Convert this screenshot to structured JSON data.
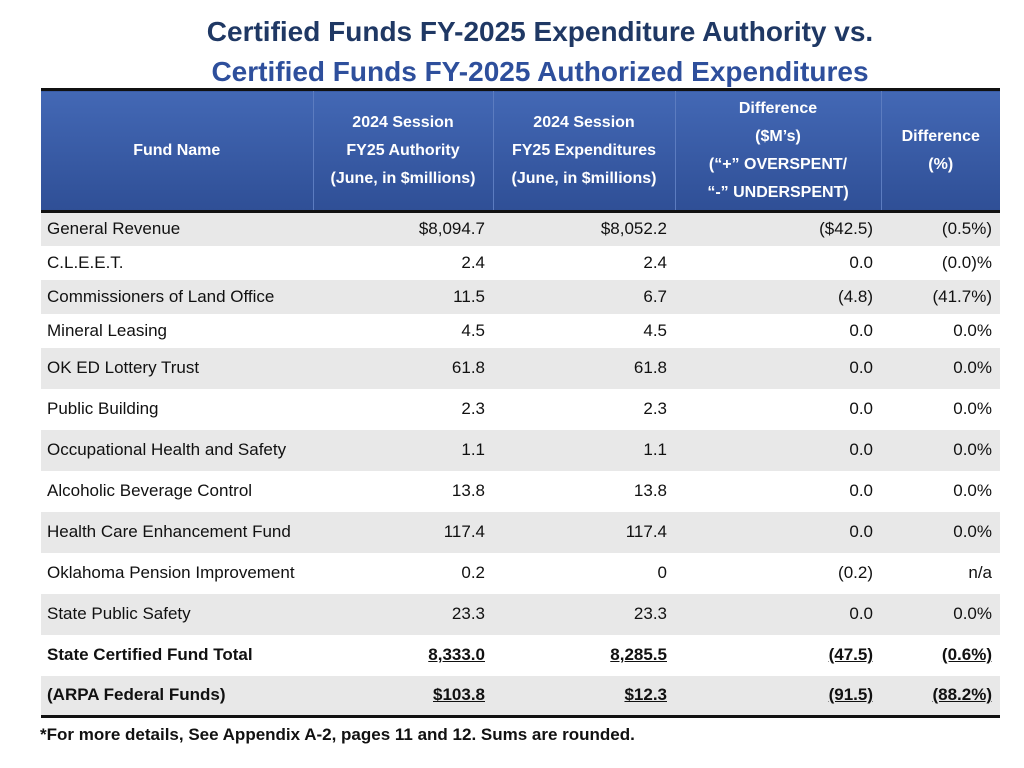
{
  "title": {
    "line1": "Certified Funds FY-2025 Expenditure Authority vs.",
    "line2": "Certified Funds FY-2025 Authorized Expenditures"
  },
  "table": {
    "headers": {
      "fund_name": [
        "Fund Name"
      ],
      "authority": [
        "2024 Session",
        "FY25 Authority",
        "(June, in $millions)"
      ],
      "expenditures": [
        "2024 Session",
        "FY25 Expenditures",
        "(June, in $millions)"
      ],
      "difference": [
        "Difference",
        "($M’s)",
        "(“+” OVERSPENT/",
        "“-” UNDERSPENT)"
      ],
      "difference_pct": [
        "Difference",
        "(%)"
      ]
    },
    "rows": [
      {
        "name": "General Revenue",
        "authority": "$8,094.7",
        "expenditures": "$8,052.2",
        "difference": "($42.5)",
        "pct": "(0.5%)"
      },
      {
        "name": "C.L.E.E.T.",
        "authority": "2.4",
        "expenditures": "2.4",
        "difference": "0.0",
        "pct": "(0.0)%"
      },
      {
        "name": "Commissioners of Land Office",
        "authority": "11.5",
        "expenditures": "6.7",
        "difference": "(4.8)",
        "pct": "(41.7%)"
      },
      {
        "name": "Mineral Leasing",
        "authority": "4.5",
        "expenditures": "4.5",
        "difference": "0.0",
        "pct": "0.0%"
      },
      {
        "name": "OK ED Lottery Trust",
        "authority": "61.8",
        "expenditures": "61.8",
        "difference": "0.0",
        "pct": "0.0%"
      },
      {
        "name": "Public Building",
        "authority": "2.3",
        "expenditures": "2.3",
        "difference": "0.0",
        "pct": "0.0%"
      },
      {
        "name": "Occupational Health and Safety",
        "authority": "1.1",
        "expenditures": "1.1",
        "difference": "0.0",
        "pct": "0.0%"
      },
      {
        "name": "Alcoholic Beverage Control",
        "authority": "13.8",
        "expenditures": "13.8",
        "difference": "0.0",
        "pct": "0.0%"
      },
      {
        "name": "Health Care Enhancement Fund",
        "authority": "117.4",
        "expenditures": "117.4",
        "difference": "0.0",
        "pct": "0.0%"
      },
      {
        "name": "Oklahoma Pension Improvement",
        "authority": "0.2",
        "expenditures": "0",
        "difference": "(0.2)",
        "pct": "n/a"
      },
      {
        "name": "State Public Safety",
        "authority": "23.3",
        "expenditures": "23.3",
        "difference": "0.0",
        "pct": "0.0%"
      }
    ],
    "totals": [
      {
        "name": "State Certified Fund Total",
        "authority": "8,333.0",
        "expenditures": "8,285.5",
        "difference": "(47.5)",
        "pct": "(0.6%)"
      },
      {
        "name": "(ARPA Federal Funds)",
        "authority": "$103.8",
        "expenditures": "$12.3",
        "difference": "(91.5)",
        "pct": "(88.2%)"
      }
    ]
  },
  "footnote": "*For more details, See Appendix A-2, pages 11 and 12. Sums are rounded."
}
